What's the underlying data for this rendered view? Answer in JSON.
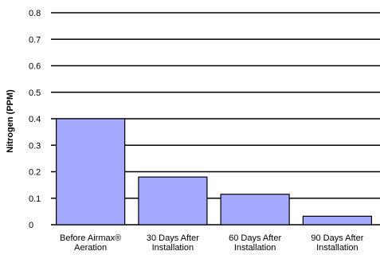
{
  "chart_data": {
    "type": "bar",
    "title": "",
    "xlabel": "",
    "ylabel": "Nitrogen (PPM)",
    "ylim": [
      0,
      0.8
    ],
    "yticks": [
      "0",
      "0.1",
      "0.2",
      "0.3",
      "0.4",
      "0.5",
      "0.6",
      "0.7",
      "0.8"
    ],
    "categories": [
      [
        "Before Airmax®",
        "Aeration"
      ],
      [
        "30 Days After",
        "Installation"
      ],
      [
        "60 Days After",
        "Installation"
      ],
      [
        "90 Days After",
        "Installation"
      ]
    ],
    "values": [
      0.4,
      0.18,
      0.115,
      0.032
    ],
    "grid": true,
    "bar_color": "#a5a8ff",
    "grid_color": "#000000"
  }
}
